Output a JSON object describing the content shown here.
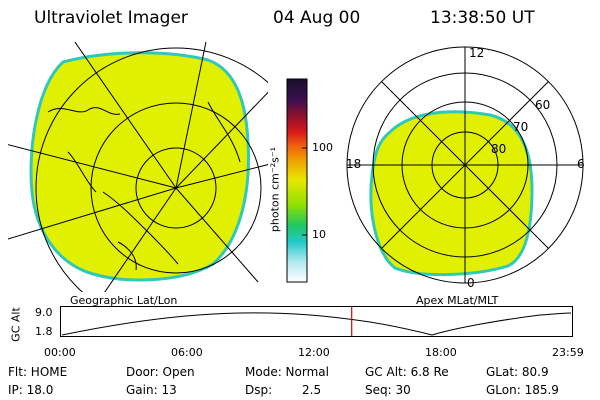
{
  "header": {
    "title": "Ultraviolet Imager",
    "date": "04 Aug 00",
    "time": "13:38:50 UT"
  },
  "panels": {
    "left_caption": "Geographic Lat/Lon",
    "right_caption": "Apex MLat/MLT"
  },
  "colorbar": {
    "unit_label": "photon cm⁻²s⁻¹",
    "tick_100": "100",
    "tick_10": "10"
  },
  "polar": {
    "mlt_12": "12",
    "mlt_18": "18",
    "mlt_6": "6",
    "mlt_0": "0",
    "mlat_60": "60",
    "mlat_70": "70",
    "mlat_80": "80"
  },
  "altitude_plot": {
    "y_label": "GC Alt",
    "y_max": "9.0",
    "y_min": "1.8",
    "x_ticks": [
      "00:00",
      "06:00",
      "12:00",
      "18:00",
      "23:59"
    ],
    "current_time_hours": 13.65
  },
  "status": {
    "row1": {
      "flt": "Flt: HOME",
      "door": "Door: Open",
      "mode": "Mode: Normal",
      "gcalt": "GC Alt: 6.8 Re",
      "glat": "GLat: 80.9"
    },
    "row2": {
      "ip": "IP: 18.0",
      "gain": "Gain: 13",
      "dsp": "Dsp:",
      "dsp_value": "2.5",
      "seq": "Seq: 30",
      "glon": "GLon: 185.9"
    }
  },
  "colors": {
    "aurora": "#e0f000",
    "aurora_edge": "#30c8b8",
    "marker": "#e00000"
  }
}
